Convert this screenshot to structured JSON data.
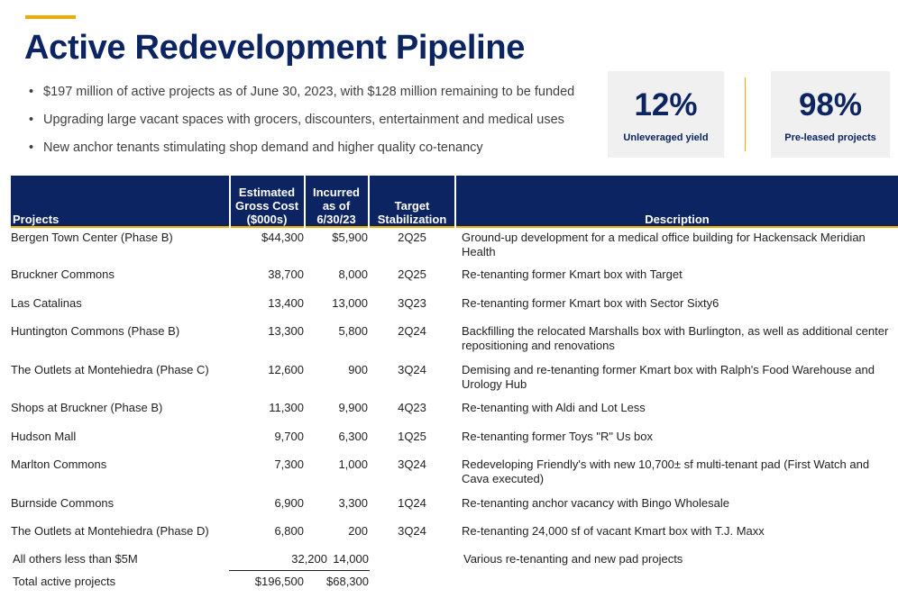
{
  "title": "Active Redevelopment Pipeline",
  "bullets": [
    "$197 million of active projects as of June 30, 2023, with $128 million remaining to be funded",
    "Upgrading large vacant spaces with grocers, discounters, entertainment and medical uses",
    "New anchor tenants stimulating shop demand and higher quality co-tenancy"
  ],
  "kpis": [
    {
      "value": "12%",
      "label": "Unleveraged yield"
    },
    {
      "value": "98%",
      "label": "Pre-leased projects"
    }
  ],
  "colors": {
    "navy": "#0c2461",
    "accent": "#f2a900",
    "kpi_bg": "#f0f0f0"
  },
  "table": {
    "headers": {
      "projects": "Projects",
      "est_cost": [
        "Estimated",
        "Gross Cost",
        "($000s)"
      ],
      "incurred": [
        "Incurred",
        "as of",
        "6/30/23"
      ],
      "target": [
        "Target",
        "Stabilization"
      ],
      "description": "Description"
    },
    "rows": [
      {
        "project": "Bergen Town Center (Phase B)",
        "est": "$44,300",
        "inc": "$5,900",
        "target": "2Q25",
        "desc": "Ground-up development for a medical office building for Hackensack Meridian Health"
      },
      {
        "project": "Bruckner Commons",
        "est": "38,700",
        "inc": "8,000",
        "target": "2Q25",
        "desc": "Re-tenanting former Kmart box with Target"
      },
      {
        "project": "Las Catalinas",
        "est": "13,400",
        "inc": "13,000",
        "target": "3Q23",
        "desc": "Re-tenanting former Kmart box with Sector Sixty6"
      },
      {
        "project": "Huntington Commons (Phase B)",
        "est": "13,300",
        "inc": "5,800",
        "target": "2Q24",
        "desc": "Backfilling the relocated Marshalls box with Burlington, as well as additional center repositioning and renovations"
      },
      {
        "project": "The Outlets at Montehiedra (Phase C)",
        "est": "12,600",
        "inc": "900",
        "target": "3Q24",
        "desc": "Demising and re-tenanting former Kmart box with Ralph's Food Warehouse and Urology Hub"
      },
      {
        "project": "Shops at Bruckner (Phase B)",
        "est": "11,300",
        "inc": "9,900",
        "target": "4Q23",
        "desc": "Re-tenanting with Aldi and Lot Less"
      },
      {
        "project": "Hudson Mall",
        "est": "9,700",
        "inc": "6,300",
        "target": "1Q25",
        "desc": "Re-tenanting former Toys \"R\" Us box"
      },
      {
        "project": "Marlton Commons",
        "est": "7,300",
        "inc": "1,000",
        "target": "3Q24",
        "desc": "Redeveloping Friendly's with new 10,700± sf multi-tenant pad (First Watch and Cava executed)"
      },
      {
        "project": "Burnside Commons",
        "est": "6,900",
        "inc": "3,300",
        "target": "1Q24",
        "desc": "Re-tenanting anchor vacancy with Bingo Wholesale"
      },
      {
        "project": "The Outlets at Montehiedra (Phase D)",
        "est": "6,800",
        "inc": "200",
        "target": "3Q24",
        "desc": "Re-tenanting 24,000 sf of vacant Kmart box with T.J. Maxx"
      }
    ],
    "others": {
      "project": "All others less than $5M",
      "est": "32,200",
      "inc": "14,000",
      "desc": "Various re-tenanting and new pad projects"
    },
    "total": {
      "project": "Total active projects",
      "est": "$196,500",
      "inc": "$68,300"
    }
  }
}
